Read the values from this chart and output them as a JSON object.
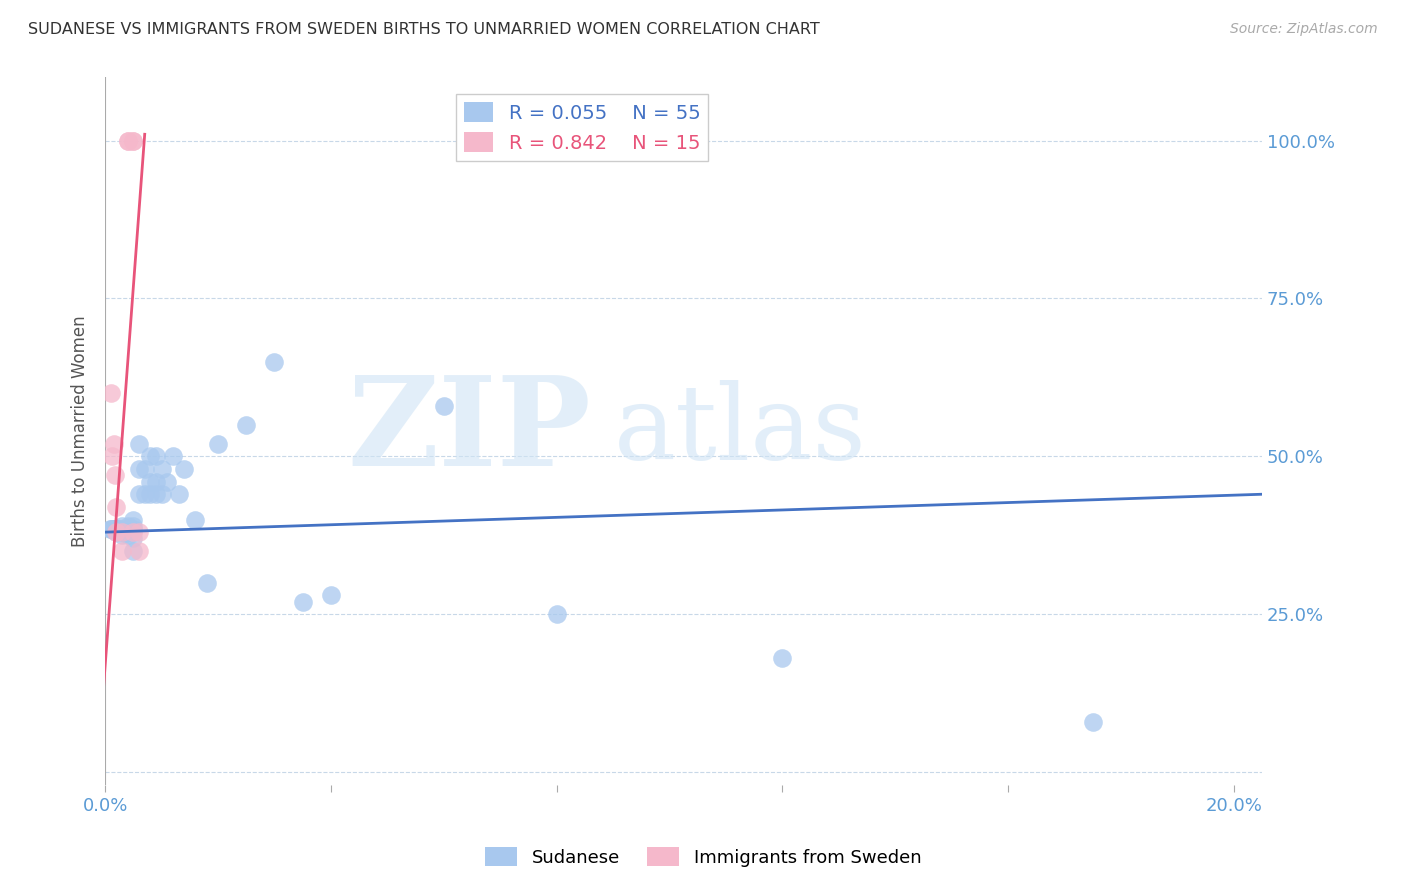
{
  "title": "SUDANESE VS IMMIGRANTS FROM SWEDEN BIRTHS TO UNMARRIED WOMEN CORRELATION CHART",
  "source": "Source: ZipAtlas.com",
  "ylabel": "Births to Unmarried Women",
  "xlim": [
    0.0,
    0.205
  ],
  "ylim": [
    -0.02,
    1.1
  ],
  "blue_color": "#A8C8EE",
  "pink_color": "#F5B8CB",
  "blue_line_color": "#4472C4",
  "pink_line_color": "#E8547A",
  "legend_R_blue": "R = 0.055",
  "legend_N_blue": "N = 55",
  "legend_R_pink": "R = 0.842",
  "legend_N_pink": "N = 15",
  "label_blue": "Sudanese",
  "label_pink": "Immigrants from Sweden",
  "sudanese_x": [
    0.0008,
    0.001,
    0.0012,
    0.0013,
    0.0015,
    0.0015,
    0.0018,
    0.002,
    0.002,
    0.0022,
    0.0025,
    0.003,
    0.003,
    0.003,
    0.003,
    0.0032,
    0.0035,
    0.004,
    0.004,
    0.004,
    0.004,
    0.005,
    0.005,
    0.005,
    0.005,
    0.005,
    0.006,
    0.006,
    0.006,
    0.007,
    0.007,
    0.008,
    0.008,
    0.008,
    0.009,
    0.009,
    0.009,
    0.01,
    0.01,
    0.011,
    0.012,
    0.013,
    0.014,
    0.016,
    0.018,
    0.02,
    0.025,
    0.03,
    0.035,
    0.04,
    0.06,
    0.08,
    0.12,
    0.175,
    0.005
  ],
  "sudanese_y": [
    0.385,
    0.385,
    0.385,
    0.385,
    0.385,
    0.385,
    0.385,
    0.38,
    0.385,
    0.385,
    0.385,
    0.375,
    0.38,
    0.385,
    0.39,
    0.38,
    0.38,
    0.375,
    0.38,
    0.385,
    0.39,
    0.37,
    0.38,
    0.385,
    0.39,
    0.4,
    0.44,
    0.48,
    0.52,
    0.44,
    0.48,
    0.44,
    0.46,
    0.5,
    0.44,
    0.46,
    0.5,
    0.44,
    0.48,
    0.46,
    0.5,
    0.44,
    0.48,
    0.4,
    0.3,
    0.52,
    0.55,
    0.65,
    0.27,
    0.28,
    0.58,
    0.25,
    0.18,
    0.08,
    0.35
  ],
  "sweden_x": [
    0.001,
    0.0012,
    0.0015,
    0.0018,
    0.002,
    0.002,
    0.003,
    0.003,
    0.004,
    0.004,
    0.005,
    0.005,
    0.005,
    0.006,
    0.006
  ],
  "sweden_y": [
    0.6,
    0.5,
    0.52,
    0.47,
    0.38,
    0.42,
    0.35,
    0.38,
    1.0,
    1.0,
    1.0,
    1.0,
    0.38,
    0.35,
    0.38
  ],
  "blue_trend_x": [
    0.0,
    0.205
  ],
  "blue_trend_y": [
    0.38,
    0.44
  ],
  "pink_trend_x": [
    -0.001,
    0.007
  ],
  "pink_trend_y": [
    0.05,
    1.01
  ],
  "ytick_pos": [
    0.0,
    0.25,
    0.5,
    0.75,
    1.0
  ],
  "ytick_labels": [
    "",
    "25.0%",
    "50.0%",
    "75.0%",
    "100.0%"
  ],
  "xtick_pos": [
    0.0,
    0.04,
    0.08,
    0.12,
    0.16,
    0.2
  ],
  "xtick_labels": [
    "0.0%",
    "",
    "",
    "",
    "",
    "20.0%"
  ]
}
